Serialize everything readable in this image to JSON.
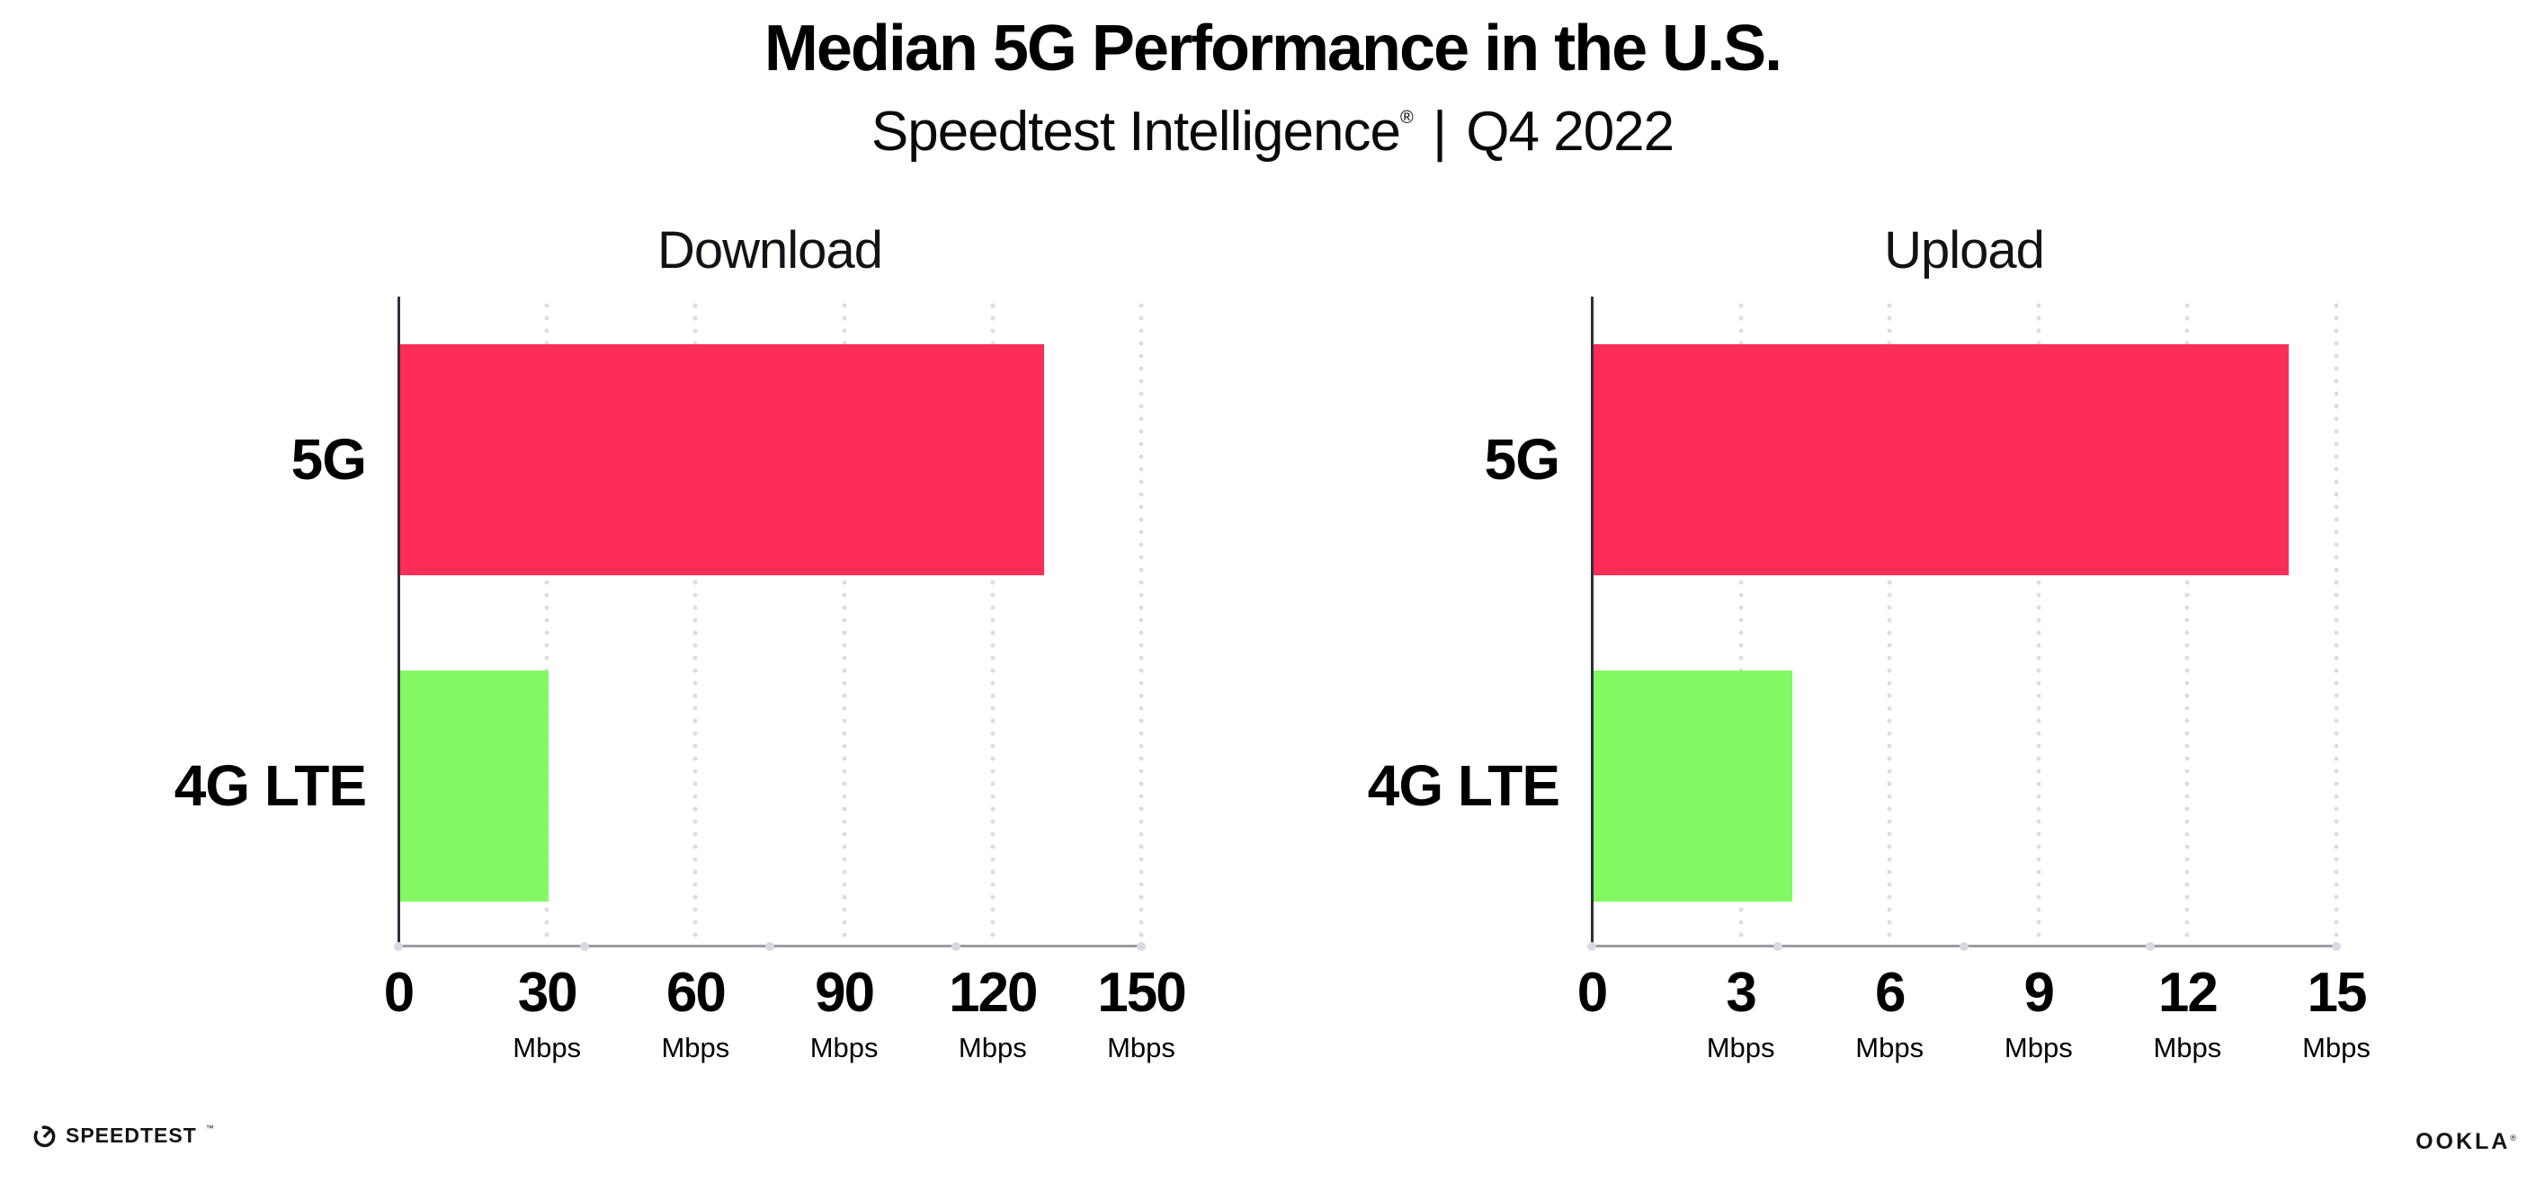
{
  "header": {
    "title": "Median 5G Performance in the U.S.",
    "subtitle_product": "Speedtest Intelligence",
    "subtitle_mark": "®",
    "subtitle_separator": " | ",
    "subtitle_period": "Q4 2022"
  },
  "colors": {
    "bar_5g": "#FC2D56",
    "bar_4g_lte": "#83F963",
    "gridline_dots": "#DBDBE7",
    "x_axis_line": "#9B9BA5",
    "y_axis_line": "#30303B",
    "text": "#000000",
    "background": "#FFFFFF"
  },
  "chart_data": [
    {
      "type": "bar",
      "orientation": "horizontal",
      "title": "Download",
      "categories": [
        "5G",
        "4G LTE"
      ],
      "values": [
        130,
        30
      ],
      "bar_colors": [
        "#FC2D56",
        "#83F963"
      ],
      "unit": "Mbps",
      "xlim": [
        0,
        150
      ],
      "xticks": [
        0,
        30,
        60,
        90,
        120,
        150
      ],
      "grid": "dotted-vertical",
      "legend": "none"
    },
    {
      "type": "bar",
      "orientation": "horizontal",
      "title": "Upload",
      "categories": [
        "5G",
        "4G LTE"
      ],
      "values": [
        14,
        4
      ],
      "bar_colors": [
        "#FC2D56",
        "#83F963"
      ],
      "unit": "Mbps",
      "xlim": [
        0,
        15
      ],
      "xticks": [
        0,
        3,
        6,
        9,
        12,
        15
      ],
      "grid": "dotted-vertical",
      "legend": "none"
    }
  ],
  "footer": {
    "speedtest_label": "SPEEDTEST",
    "speedtest_mark": "™",
    "ookla_label": "OOKLA",
    "ookla_mark": "®"
  }
}
